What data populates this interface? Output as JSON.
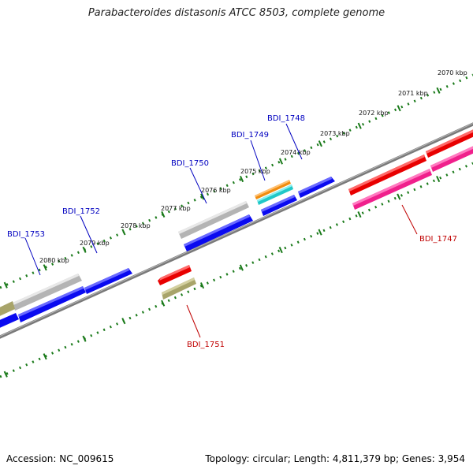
{
  "title": "Parabacteroides distasonis ATCC 8503, complete genome",
  "footer": {
    "accession": "Accession: NC_009615",
    "topology": "Topology: circular; Length: 4,811,379 bp; Genes: 3,954"
  },
  "scale_labels": [
    "2070 kbp",
    "2071 kbp",
    "2072 kbp",
    "2073 kbp",
    "2074 kbp",
    "2075 kbp",
    "2076 kbp",
    "2077 kbp",
    "2078 kbp",
    "2079 kbp",
    "2080 kbp"
  ],
  "gene_labels": {
    "bdi_1747": "BDI_1747",
    "bdi_1748": "BDI_1748",
    "bdi_1749": "BDI_1749",
    "bdi_1750": "BDI_1750",
    "bdi_1751": "BDI_1751",
    "bdi_1752": "BDI_1752",
    "bdi_1753": "BDI_1753"
  },
  "colors": {
    "forward_label": "#0000c0",
    "reverse_label": "#c00000",
    "blue": "#0a0af0",
    "gray": "#b4b4b4",
    "red": "#e80000",
    "pink": "#f0208c",
    "olive": "#a8a46a",
    "orange": "#f08c10",
    "cyan": "#20c8c8",
    "scale_tick": "#1a7a1a"
  }
}
